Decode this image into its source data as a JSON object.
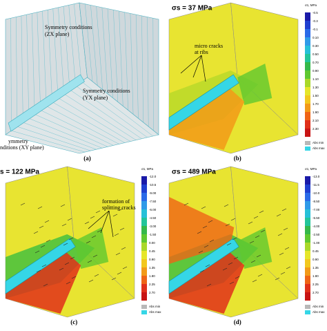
{
  "panels": [
    {
      "label": "(a)",
      "annotations": [
        "Symmetry conditions",
        "(ZX plane)",
        "Symmetry conditions",
        "(YX plane)",
        "ymmetry",
        "nditions (XY plane)"
      ]
    },
    {
      "label": "(b)",
      "title": "σs = 37 MPa",
      "annotations": [
        "micro cracks",
        "at ribs"
      ],
      "legend_title": "σ1, MPa",
      "legend": [
        "-0.5",
        "-0.3",
        "-0.1",
        "0.10",
        "0.30",
        "0.50",
        "0.70",
        "0.90",
        "1.10",
        "1.30",
        "1.50",
        "1.70",
        "1.90",
        "2.10",
        "2.30"
      ],
      "legend_extra": [
        "Abs min",
        "Abs max"
      ]
    },
    {
      "label": "(c)",
      "title": "s = 122 MPa",
      "annotations": [
        "formation of",
        "splitting cracks"
      ],
      "legend_title": "σ1, MPa",
      "legend": [
        "-12.0",
        "-10.5",
        "-9.00",
        "-7.50",
        "-6.00",
        "-4.50",
        "-3.00",
        "-1.50",
        "0.00",
        "0.45",
        "0.90",
        "1.35",
        "1.80",
        "2.25",
        "2.70"
      ],
      "legend_extra": [
        "Abs min",
        "Abs max"
      ]
    },
    {
      "label": "(d)",
      "title": "σs = 489 MPa",
      "legend_title": "σ1, MPa",
      "legend": [
        "-13.0",
        "-11.5",
        "-10.0",
        "-8.50",
        "-7.00",
        "-5.50",
        "-4.00",
        "-2.50",
        "-1.00",
        "0.45",
        "0.90",
        "1.35",
        "1.80",
        "2.25",
        "2.70"
      ],
      "legend_extra": [
        "Abs min",
        "Abs max"
      ]
    }
  ]
}
